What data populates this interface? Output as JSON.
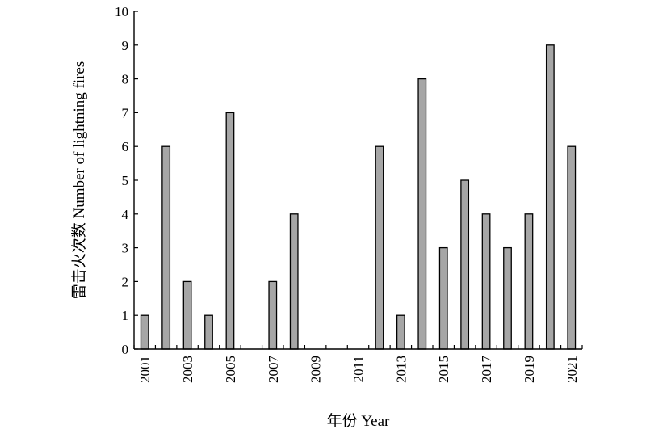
{
  "chart_data": {
    "type": "bar",
    "title": "",
    "xlabel": "年份 Year",
    "ylabel": "雷击火次数 Number of lightning fires",
    "ylim": [
      0,
      10
    ],
    "yticks": [
      0,
      1,
      2,
      3,
      4,
      5,
      6,
      7,
      8,
      9,
      10
    ],
    "categories": [
      "2001",
      "2002",
      "2003",
      "2004",
      "2005",
      "2006",
      "2007",
      "2008",
      "2009",
      "2010",
      "2011",
      "2012",
      "2013",
      "2014",
      "2015",
      "2016",
      "2017",
      "2018",
      "2019",
      "2020",
      "2021"
    ],
    "xtick_labels": [
      "2001",
      "2003",
      "2005",
      "2007",
      "2009",
      "2011",
      "2013",
      "2015",
      "2017",
      "2019",
      "2021"
    ],
    "values": [
      1,
      6,
      2,
      1,
      7,
      0,
      2,
      4,
      0,
      0,
      0,
      6,
      1,
      8,
      3,
      5,
      4,
      3,
      4,
      9,
      6
    ],
    "bar_color": "#a6a6a6",
    "grid": false,
    "legend": "none"
  }
}
